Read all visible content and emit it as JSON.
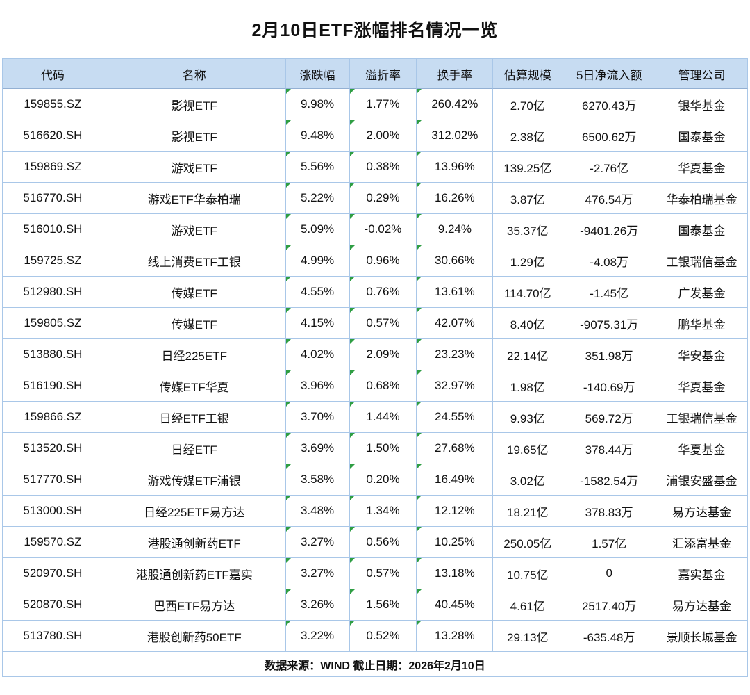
{
  "title": "2月10日ETF涨幅排名情况一览",
  "table": {
    "headers": [
      "代码",
      "名称",
      "涨跌幅",
      "溢折率",
      "换手率",
      "估算规模",
      "5日净流入额",
      "管理公司"
    ],
    "marker_columns": [
      2,
      3,
      4
    ],
    "rows": [
      [
        "159855.SZ",
        "影视ETF",
        "9.98%",
        "1.77%",
        "260.42%",
        "2.70亿",
        "6270.43万",
        "银华基金"
      ],
      [
        "516620.SH",
        "影视ETF",
        "9.48%",
        "2.00%",
        "312.02%",
        "2.38亿",
        "6500.62万",
        "国泰基金"
      ],
      [
        "159869.SZ",
        "游戏ETF",
        "5.56%",
        "0.38%",
        "13.96%",
        "139.25亿",
        "-2.76亿",
        "华夏基金"
      ],
      [
        "516770.SH",
        "游戏ETF华泰柏瑞",
        "5.22%",
        "0.29%",
        "16.26%",
        "3.87亿",
        "476.54万",
        "华泰柏瑞基金"
      ],
      [
        "516010.SH",
        "游戏ETF",
        "5.09%",
        "-0.02%",
        "9.24%",
        "35.37亿",
        "-9401.26万",
        "国泰基金"
      ],
      [
        "159725.SZ",
        "线上消费ETF工银",
        "4.99%",
        "0.96%",
        "30.66%",
        "1.29亿",
        "-4.08万",
        "工银瑞信基金"
      ],
      [
        "512980.SH",
        "传媒ETF",
        "4.55%",
        "0.76%",
        "13.61%",
        "114.70亿",
        "-1.45亿",
        "广发基金"
      ],
      [
        "159805.SZ",
        "传媒ETF",
        "4.15%",
        "0.57%",
        "42.07%",
        "8.40亿",
        "-9075.31万",
        "鹏华基金"
      ],
      [
        "513880.SH",
        "日经225ETF",
        "4.02%",
        "2.09%",
        "23.23%",
        "22.14亿",
        "351.98万",
        "华安基金"
      ],
      [
        "516190.SH",
        "传媒ETF华夏",
        "3.96%",
        "0.68%",
        "32.97%",
        "1.98亿",
        "-140.69万",
        "华夏基金"
      ],
      [
        "159866.SZ",
        "日经ETF工银",
        "3.70%",
        "1.44%",
        "24.55%",
        "9.93亿",
        "569.72万",
        "工银瑞信基金"
      ],
      [
        "513520.SH",
        "日经ETF",
        "3.69%",
        "1.50%",
        "27.68%",
        "19.65亿",
        "378.44万",
        "华夏基金"
      ],
      [
        "517770.SH",
        "游戏传媒ETF浦银",
        "3.58%",
        "0.20%",
        "16.49%",
        "3.02亿",
        "-1582.54万",
        "浦银安盛基金"
      ],
      [
        "513000.SH",
        "日经225ETF易方达",
        "3.48%",
        "1.34%",
        "12.12%",
        "18.21亿",
        "378.83万",
        "易方达基金"
      ],
      [
        "159570.SZ",
        "港股通创新药ETF",
        "3.27%",
        "0.56%",
        "10.25%",
        "250.05亿",
        "1.57亿",
        "汇添富基金"
      ],
      [
        "520970.SH",
        "港股通创新药ETF嘉实",
        "3.27%",
        "0.57%",
        "13.18%",
        "10.75亿",
        "0",
        "嘉实基金"
      ],
      [
        "520870.SH",
        "巴西ETF易方达",
        "3.26%",
        "1.56%",
        "40.45%",
        "4.61亿",
        "2517.40万",
        "易方达基金"
      ],
      [
        "513780.SH",
        "港股创新药50ETF",
        "3.22%",
        "0.52%",
        "13.28%",
        "29.13亿",
        "-635.48万",
        "景顺长城基金"
      ]
    ]
  },
  "footer": {
    "text": "数据来源：WIND 截止日期：2026年2月10日"
  },
  "colors": {
    "header_bg": "#c7dcf2",
    "grid_border": "#a9c7e8",
    "header_border": "#93b0d3",
    "marker_green": "#2f9e44"
  }
}
